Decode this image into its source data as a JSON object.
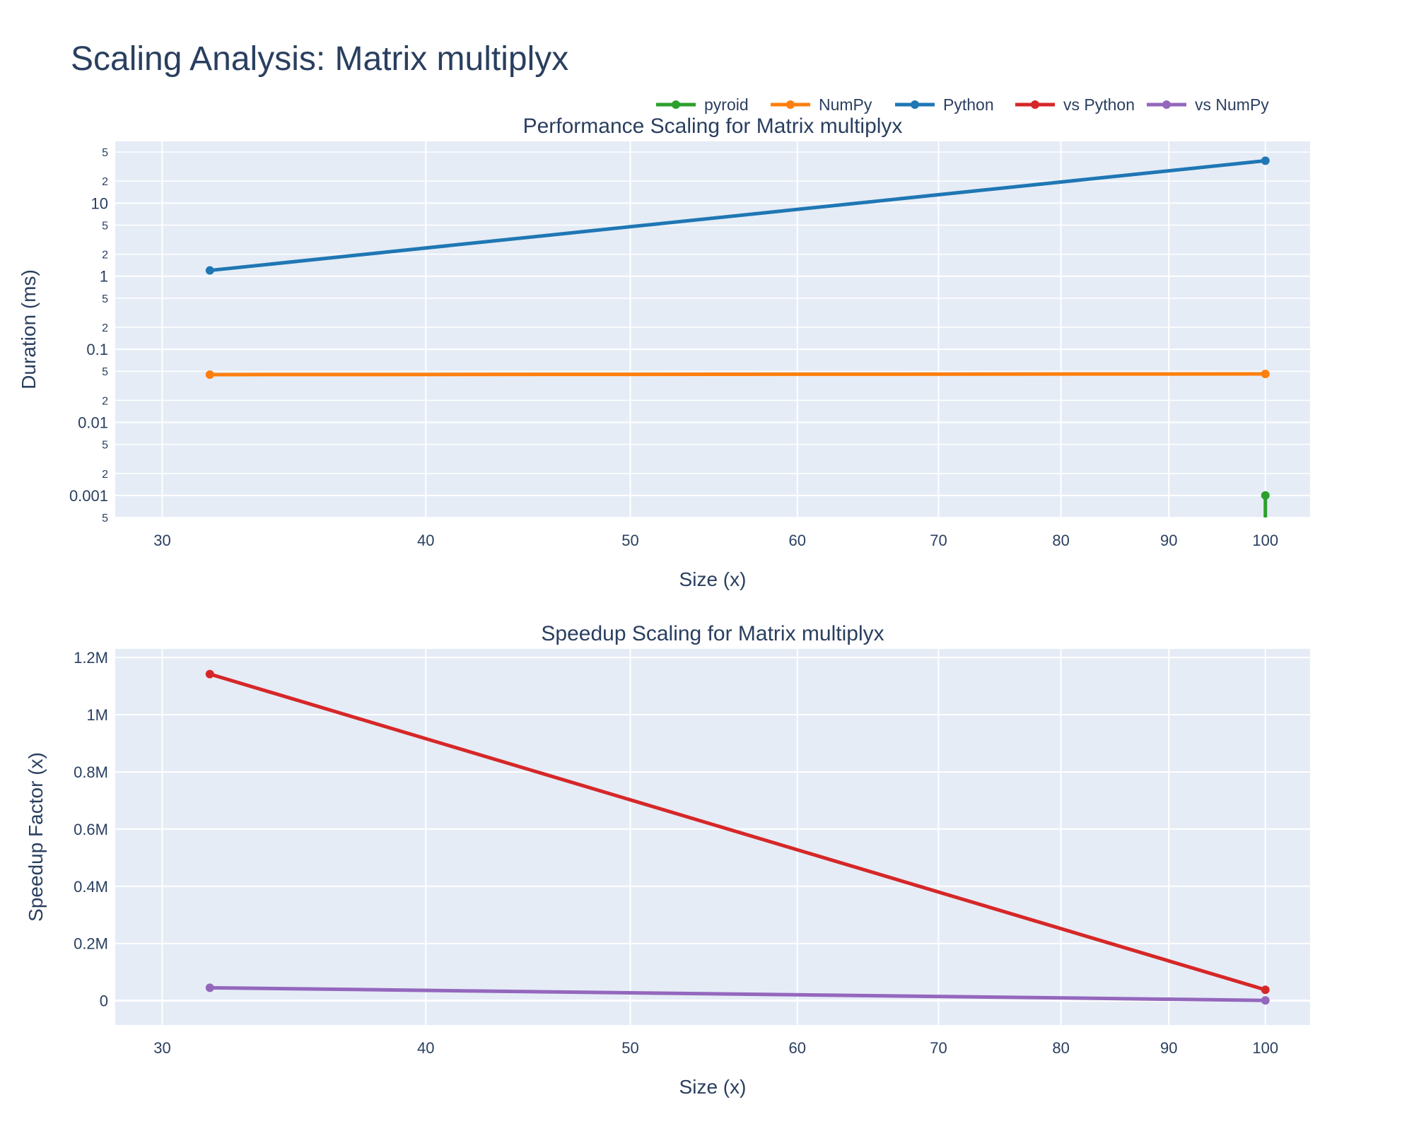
{
  "title": "Scaling Analysis: Matrix multiplyx",
  "legend": {
    "placement": "top-right, horizontal",
    "items": [
      {
        "name": "pyroid",
        "color": "#2ca02c"
      },
      {
        "name": "NumPy",
        "color": "#ff7f0e"
      },
      {
        "name": "Python",
        "color": "#1f77b4"
      },
      {
        "name": "vs Python",
        "color": "#d62728"
      },
      {
        "name": "vs NumPy",
        "color": "#9467bd"
      }
    ]
  },
  "colors": {
    "plot_bg": "#e5ecf6",
    "grid": "#ffffff",
    "text": "#2a3f5f"
  },
  "chart_data": [
    {
      "type": "line",
      "title": "Performance Scaling for Matrix multiplyx",
      "xlabel": "Size (x)",
      "ylabel": "Duration (ms)",
      "x_scale": "log",
      "y_scale": "log",
      "xlim": [
        28.5,
        105
      ],
      "ylim": [
        0.0005,
        70
      ],
      "x_ticks": [
        30,
        40,
        50,
        60,
        70,
        80,
        90,
        100
      ],
      "x_tick_labels": [
        "30",
        "40",
        "50",
        "60",
        "70",
        "80",
        "90",
        "100"
      ],
      "y_major_ticks": [
        0.001,
        0.01,
        0.1,
        1,
        10
      ],
      "y_major_labels": [
        "0.001",
        "0.01",
        "0.1",
        "1",
        "10"
      ],
      "y_minor_ticks": [
        0.0005,
        0.002,
        0.005,
        0.02,
        0.05,
        0.2,
        0.5,
        2,
        5,
        20,
        50
      ],
      "y_minor_labels": [
        "5",
        "2",
        "5",
        "2",
        "5",
        "2",
        "5",
        "2",
        "5",
        "2",
        "5"
      ],
      "grid": true,
      "series": [
        {
          "name": "pyroid",
          "color": "#2ca02c",
          "x": [
            100,
            100
          ],
          "y": [
            3e-08,
            0.001
          ]
        },
        {
          "name": "NumPy",
          "color": "#ff7f0e",
          "x": [
            31.6,
            100
          ],
          "y": [
            0.045,
            0.046
          ]
        },
        {
          "name": "Python",
          "color": "#1f77b4",
          "x": [
            31.6,
            100
          ],
          "y": [
            1.2,
            38
          ]
        }
      ]
    },
    {
      "type": "line",
      "title": "Speedup Scaling for Matrix multiplyx",
      "xlabel": "Size (x)",
      "ylabel": "Speedup Factor (x)",
      "x_scale": "log",
      "y_scale": "linear",
      "xlim": [
        28.5,
        105
      ],
      "ylim": [
        -85000,
        1230000
      ],
      "x_ticks": [
        30,
        40,
        50,
        60,
        70,
        80,
        90,
        100
      ],
      "x_tick_labels": [
        "30",
        "40",
        "50",
        "60",
        "70",
        "80",
        "90",
        "100"
      ],
      "y_ticks": [
        0,
        200000,
        400000,
        600000,
        800000,
        1000000,
        1200000
      ],
      "y_tick_labels": [
        "0",
        "0.2M",
        "0.4M",
        "0.6M",
        "0.8M",
        "1M",
        "1.2M"
      ],
      "grid": true,
      "series": [
        {
          "name": "vs Python",
          "color": "#d62728",
          "x": [
            31.6,
            100
          ],
          "y": [
            1142000,
            38000
          ]
        },
        {
          "name": "vs NumPy",
          "color": "#9467bd",
          "x": [
            31.6,
            100
          ],
          "y": [
            45000,
            1000
          ]
        }
      ]
    }
  ]
}
